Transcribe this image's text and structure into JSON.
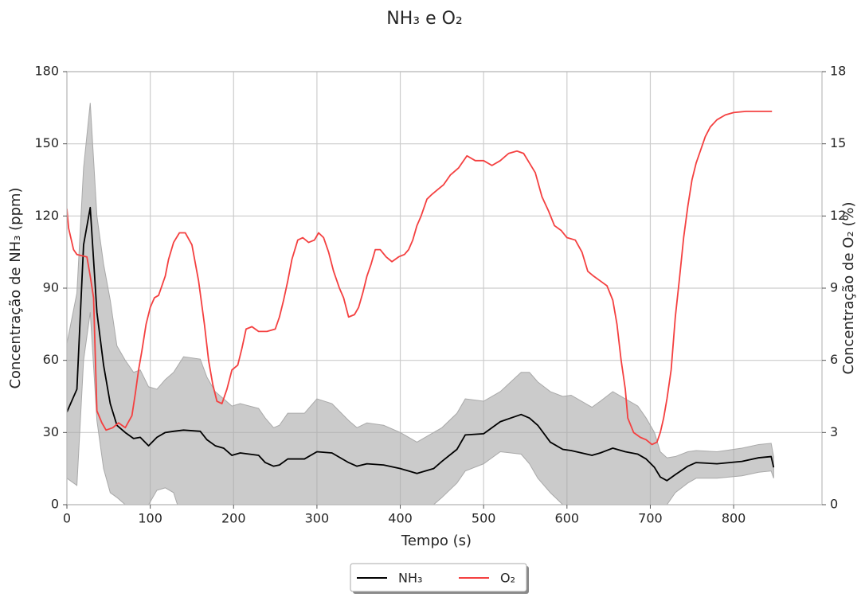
{
  "chart_data": {
    "type": "line",
    "title": "NH₃ e O₂",
    "xlabel": "Tempo (s)",
    "ylabel": "Concentração de NH₃ (ppm)",
    "y2label": "Concentração de O₂ (%)",
    "xlim": [
      0,
      906
    ],
    "xticks": [
      0,
      100,
      200,
      300,
      400,
      500,
      600,
      700,
      800
    ],
    "ylim": [
      0,
      180
    ],
    "yticks": [
      0,
      30,
      60,
      90,
      120,
      150,
      180
    ],
    "y2lim": [
      0,
      18
    ],
    "y2ticks": [
      0,
      3,
      6,
      9,
      12,
      15,
      18
    ],
    "grid": true,
    "legend": "bottom",
    "series": [
      {
        "name": "NH₃",
        "color": "#000000",
        "band_color": "#a9a9a9",
        "x": [
          0,
          12,
          20,
          28,
          36,
          44,
          52,
          60,
          70,
          80,
          88,
          98,
          108,
          118,
          128,
          140,
          160,
          168,
          178,
          188,
          198,
          208,
          230,
          238,
          248,
          255,
          265,
          285,
          300,
          318,
          338,
          348,
          360,
          380,
          400,
          420,
          440,
          450,
          468,
          478,
          500,
          520,
          545,
          555,
          565,
          580,
          595,
          605,
          630,
          640,
          655,
          670,
          685,
          695,
          705,
          712,
          720,
          730,
          745,
          755,
          780,
          810,
          830,
          845,
          848
        ],
        "values": [
          38.5,
          48,
          108,
          123.5,
          80,
          58,
          42,
          33,
          30,
          27.5,
          28,
          24.5,
          28,
          30,
          30.5,
          31,
          30.5,
          27,
          24.5,
          23.5,
          20.5,
          21.5,
          20.5,
          17.5,
          16,
          16.5,
          19,
          19,
          22,
          21.5,
          17.5,
          16,
          17,
          16.5,
          15,
          13,
          15,
          18,
          23,
          29,
          29.5,
          34.5,
          37.5,
          36,
          33,
          26,
          23,
          22.5,
          20.5,
          21.5,
          23.5,
          22,
          21,
          19,
          15.5,
          11.5,
          10,
          12.5,
          16,
          17.5,
          17,
          18,
          19.5,
          20,
          15.5
        ],
        "upper": [
          67,
          88,
          140,
          167,
          120,
          100,
          85,
          66,
          60,
          55,
          56,
          49,
          48,
          52,
          55,
          61.5,
          60.5,
          53,
          47,
          44,
          41,
          42,
          40,
          36,
          32,
          33,
          38,
          38,
          44,
          42,
          35,
          32,
          34,
          33,
          30,
          26,
          30,
          32,
          38,
          44,
          43,
          47,
          55,
          55,
          51,
          47,
          45,
          45.5,
          40.5,
          43,
          47,
          44,
          41,
          36,
          30,
          22,
          19.5,
          20,
          22,
          22.5,
          22,
          23.5,
          25,
          25.5,
          20
        ],
        "lower": [
          11,
          8,
          60,
          80,
          35,
          15,
          5,
          3,
          0,
          -8,
          -6,
          0,
          6,
          7,
          5,
          -8,
          -10,
          -15,
          -10,
          -12,
          -10,
          -12,
          -10,
          -8,
          -5,
          -5,
          -6,
          -6,
          -5,
          -6,
          -7,
          -5,
          -5,
          -5,
          -4,
          -2,
          0,
          3,
          9,
          14,
          17,
          22,
          21,
          17,
          11,
          5,
          0,
          -4,
          -10,
          -10,
          -12,
          -10,
          -8,
          -6,
          -4,
          -2,
          0,
          5,
          9,
          11,
          11,
          12,
          13.5,
          14,
          11
        ]
      },
      {
        "name": "O₂",
        "color": "#f44040",
        "axis": "y2",
        "x": [
          0,
          2,
          8,
          12,
          24,
          28,
          32,
          36,
          42,
          47,
          55,
          62,
          70,
          78,
          82,
          86,
          90,
          95,
          100,
          105,
          110,
          118,
          122,
          128,
          135,
          142,
          150,
          158,
          165,
          170,
          175,
          180,
          186,
          192,
          198,
          205,
          210,
          215,
          222,
          230,
          240,
          250,
          255,
          260,
          265,
          270,
          277,
          283,
          290,
          297,
          302,
          308,
          314,
          320,
          327,
          332,
          338,
          345,
          350,
          355,
          360,
          365,
          370,
          376,
          383,
          390,
          398,
          405,
          410,
          415,
          420,
          425,
          432,
          438,
          445,
          452,
          460,
          470,
          480,
          490,
          500,
          510,
          520,
          530,
          540,
          548,
          555,
          562,
          570,
          578,
          585,
          593,
          600,
          610,
          618,
          625,
          632,
          640,
          648,
          655,
          660,
          665,
          670,
          673,
          680,
          688,
          695,
          702,
          708,
          712,
          716,
          720,
          725,
          730,
          735,
          740,
          745,
          750,
          755,
          760,
          766,
          772,
          780,
          790,
          800,
          815,
          830,
          846
        ],
        "values": [
          12.3,
          11.5,
          10.6,
          10.4,
          10.3,
          9.5,
          8.6,
          3.9,
          3.4,
          3.1,
          3.2,
          3.4,
          3.2,
          3.7,
          4.6,
          5.6,
          6.4,
          7.5,
          8.2,
          8.6,
          8.7,
          9.5,
          10.2,
          10.9,
          11.3,
          11.3,
          10.8,
          9.3,
          7.5,
          6.0,
          5.0,
          4.3,
          4.2,
          4.8,
          5.6,
          5.8,
          6.5,
          7.3,
          7.4,
          7.2,
          7.2,
          7.3,
          7.8,
          8.5,
          9.3,
          10.2,
          11.0,
          11.1,
          10.9,
          11.0,
          11.3,
          11.1,
          10.5,
          9.7,
          9.0,
          8.6,
          7.8,
          7.9,
          8.2,
          8.8,
          9.5,
          10.0,
          10.6,
          10.6,
          10.3,
          10.1,
          10.3,
          10.4,
          10.6,
          11.0,
          11.6,
          12.0,
          12.7,
          12.9,
          13.1,
          13.3,
          13.7,
          14.0,
          14.5,
          14.3,
          14.3,
          14.1,
          14.3,
          14.6,
          14.7,
          14.6,
          14.2,
          13.8,
          12.8,
          12.2,
          11.6,
          11.4,
          11.1,
          11.0,
          10.5,
          9.7,
          9.5,
          9.3,
          9.1,
          8.5,
          7.5,
          6.0,
          4.8,
          3.6,
          3.0,
          2.8,
          2.7,
          2.5,
          2.6,
          3.0,
          3.6,
          4.4,
          5.6,
          7.8,
          9.4,
          11.1,
          12.4,
          13.5,
          14.2,
          14.7,
          15.3,
          15.7,
          16.0,
          16.2,
          16.3,
          16.35,
          16.35,
          16.35
        ]
      }
    ]
  }
}
